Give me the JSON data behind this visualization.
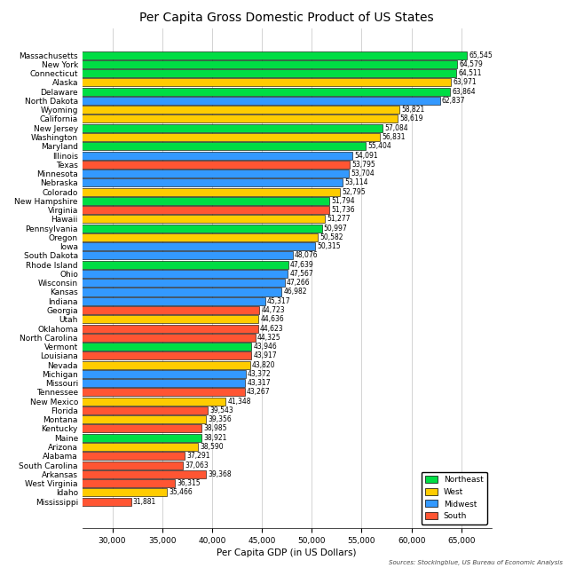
{
  "title": "Per Capita Gross Domestic Product of US States",
  "xlabel": "Per Capita GDP (in US Dollars)",
  "source_text": "Sources: Stockingblue, US Bureau of Economic Analysis",
  "states": [
    "Mississippi",
    "Idaho",
    "West Virginia",
    "Arkansas",
    "South Carolina",
    "Alabama",
    "Arizona",
    "Maine",
    "Kentucky",
    "Montana",
    "Florida",
    "New Mexico",
    "Tennessee",
    "Missouri",
    "Michigan",
    "Nevada",
    "Louisiana",
    "Vermont",
    "North Carolina",
    "Oklahoma",
    "Utah",
    "Georgia",
    "Indiana",
    "Kansas",
    "Wisconsin",
    "Ohio",
    "Rhode Island",
    "South Dakota",
    "Iowa",
    "Oregon",
    "Pennsylvania",
    "Hawaii",
    "Virginia",
    "New Hampshire",
    "Colorado",
    "Nebraska",
    "Minnesota",
    "Texas",
    "Illinois",
    "Maryland",
    "Washington",
    "New Jersey",
    "California",
    "Wyoming",
    "North Dakota",
    "Delaware",
    "Alaska",
    "Connecticut",
    "New York",
    "Massachusetts"
  ],
  "values": [
    31881,
    35466,
    36315,
    39368,
    37063,
    37291,
    38590,
    38921,
    38985,
    39356,
    39543,
    41348,
    43267,
    43317,
    43372,
    43820,
    43917,
    43946,
    44325,
    44623,
    44636,
    44723,
    45317,
    46982,
    47266,
    47567,
    47639,
    48076,
    50315,
    50582,
    50997,
    51277,
    51736,
    51794,
    52795,
    53114,
    53704,
    53795,
    54091,
    55404,
    56831,
    57084,
    58619,
    58821,
    62837,
    63864,
    63971,
    64511,
    64579,
    65545
  ],
  "regions": [
    "South",
    "West",
    "South",
    "South",
    "South",
    "South",
    "West",
    "Northeast",
    "South",
    "West",
    "South",
    "West",
    "South",
    "Midwest",
    "Midwest",
    "West",
    "South",
    "Northeast",
    "South",
    "South",
    "West",
    "South",
    "Midwest",
    "Midwest",
    "Midwest",
    "Midwest",
    "Northeast",
    "Midwest",
    "Midwest",
    "West",
    "Northeast",
    "West",
    "South",
    "Northeast",
    "West",
    "Midwest",
    "Midwest",
    "South",
    "Midwest",
    "Northeast",
    "West",
    "Northeast",
    "West",
    "West",
    "Midwest",
    "Northeast",
    "West",
    "Northeast",
    "Northeast",
    "Northeast"
  ],
  "region_colors": {
    "Northeast": "#00dd44",
    "West": "#ffcc00",
    "Midwest": "#3399ff",
    "South": "#ff5533"
  },
  "bar_edge_color": "#000000",
  "text_color": "#000000",
  "background_color": "#ffffff",
  "grid_color": "#cccccc",
  "xlim": [
    27000,
    68000
  ],
  "xticks": [
    30000,
    35000,
    40000,
    45000,
    50000,
    55000,
    60000,
    65000
  ],
  "legend_labels": [
    "Northeast",
    "West",
    "Midwest",
    "South"
  ],
  "value_fontsize": 5.5,
  "label_fontsize": 6.5,
  "title_fontsize": 10
}
